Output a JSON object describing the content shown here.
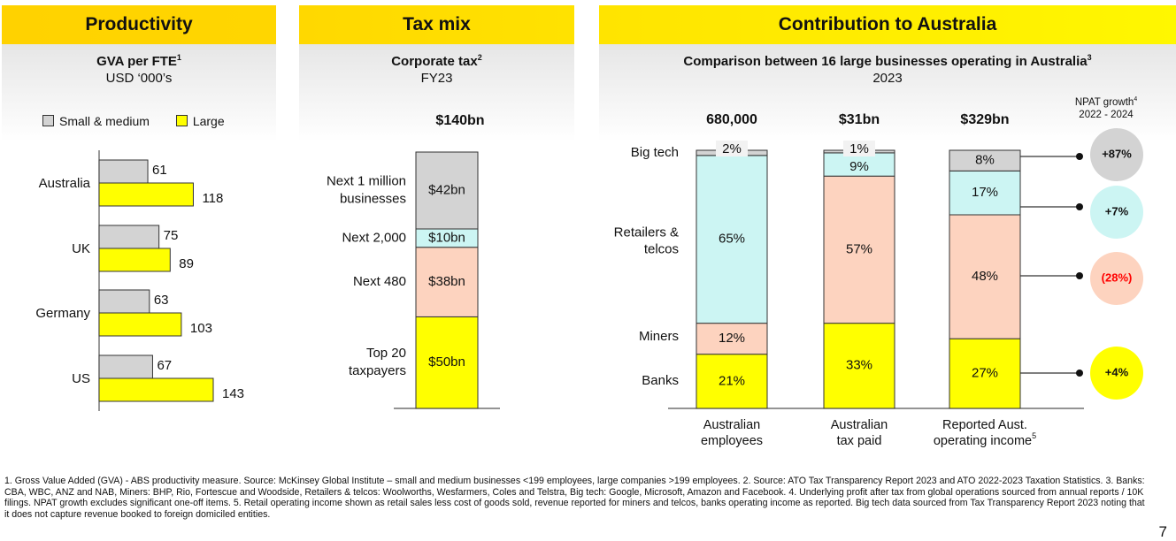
{
  "colors": {
    "small_medium": "#d3d3d3",
    "large": "#ffff00",
    "gray_segment": "#d3d3d3",
    "cyan_segment": "#ccf5f3",
    "peach_segment": "#fdd3bf",
    "yellow_segment": "#ffff00",
    "negative_text": "#ff0000"
  },
  "panels": {
    "productivity": {
      "header": "Productivity",
      "title": "GVA per FTE",
      "title_sup": "1",
      "subtitle": "USD ‘000’s",
      "legend": [
        {
          "label": "Small & medium",
          "color": "#d3d3d3"
        },
        {
          "label": "Large",
          "color": "#ffff00"
        }
      ]
    },
    "tax_mix": {
      "header": "Tax mix",
      "title": "Corporate tax",
      "title_sup": "2",
      "subtitle": "FY23",
      "total": "$140bn"
    },
    "contribution": {
      "header": "Contribution to Australia",
      "title": "Comparison between 16 large businesses operating in Australia",
      "title_sup": "3",
      "subtitle": "2023",
      "npat_header_line1": "NPAT growth",
      "npat_header_sup": "4",
      "npat_header_line2": "2022 - 2024"
    }
  },
  "chart_data": [
    {
      "type": "bar",
      "orientation": "horizontal",
      "title": "GVA per FTE",
      "subtitle": "USD ‘000’s",
      "categories": [
        "Australia",
        "UK",
        "Germany",
        "US"
      ],
      "series": [
        {
          "name": "Small & medium",
          "values": [
            61,
            75,
            63,
            67
          ]
        },
        {
          "name": "Large",
          "values": [
            118,
            89,
            103,
            143
          ]
        }
      ],
      "xlim": [
        0,
        150
      ],
      "legend": "top"
    },
    {
      "type": "bar",
      "stacked": true,
      "title": "Corporate tax FY23",
      "total_label": "$140bn",
      "segments": [
        {
          "name": "Top 20 taxpayers",
          "label_lines": [
            "Top 20",
            "taxpayers"
          ],
          "value": 50,
          "value_label": "$50bn",
          "color": "#ffff00"
        },
        {
          "name": "Next 480",
          "label_lines": [
            "Next 480"
          ],
          "value": 38,
          "value_label": "$38bn",
          "color": "#fdd3bf"
        },
        {
          "name": "Next 2,000",
          "label_lines": [
            "Next 2,000"
          ],
          "value": 10,
          "value_label": "$10bn",
          "color": "#ccf5f3"
        },
        {
          "name": "Next 1 million businesses",
          "label_lines": [
            "Next 1 million",
            "businesses"
          ],
          "value": 42,
          "value_label": "$42bn",
          "color": "#d3d3d3"
        }
      ],
      "unit": "$bn"
    },
    {
      "type": "bar",
      "stacked": true,
      "percent": true,
      "title": "Comparison between 16 large businesses operating in Australia",
      "subtitle": "2023",
      "categories": [
        {
          "label_lines": [
            "Australian",
            "employees"
          ],
          "total": "680,000"
        },
        {
          "label_lines": [
            "Australian",
            "tax paid"
          ],
          "total": "$31bn"
        },
        {
          "label_lines": [
            "Reported Aust.",
            "operating income"
          ],
          "label_sup": "5",
          "total": "$329bn"
        }
      ],
      "series": [
        {
          "name": "Banks",
          "label_lines": [
            "Banks"
          ],
          "color": "#ffff00",
          "values": [
            21,
            33,
            27
          ]
        },
        {
          "name": "Miners",
          "label_lines": [
            "Miners"
          ],
          "color": "#fdd3bf",
          "values": [
            12,
            57,
            48
          ]
        },
        {
          "name": "Retailers & telcos",
          "label_lines": [
            "Retailers &",
            "telcos"
          ],
          "color": "#ccf5f3",
          "values": [
            65,
            9,
            17
          ]
        },
        {
          "name": "Big tech",
          "label_lines": [
            "Big tech"
          ],
          "color": "#d3d3d3",
          "values": [
            2,
            1,
            8
          ]
        }
      ],
      "npat_growth": [
        {
          "segment": "Big tech",
          "value": "+87%",
          "color": "#d3d3d3",
          "negative": false
        },
        {
          "segment": "Retailers & telcos",
          "value": "+7%",
          "color": "#ccf5f3",
          "negative": false
        },
        {
          "segment": "Miners",
          "value": "(28%)",
          "color": "#fdd3bf",
          "negative": true
        },
        {
          "segment": "Banks",
          "value": "+4%",
          "color": "#ffff00",
          "negative": false
        }
      ],
      "ylim": [
        0,
        100
      ]
    }
  ],
  "footnotes": "1. Gross Value Added (GVA) - ABS productivity measure. Source: McKinsey Global Institute – small and medium businesses <199 employees, large companies >199 employees.  2. Source: ATO Tax Transparency Report 2023 and ATO 2022-2023 Taxation Statistics.  3. Banks: CBA, WBC, ANZ and NAB, Miners: BHP, Rio, Fortescue and Woodside, Retailers & telcos: Woolworths, Wesfarmers, Coles and Telstra, Big tech: Google, Microsoft, Amazon and Facebook.  4. Underlying profit after tax from global operations sourced from annual reports / 10K filings. NPAT growth excludes significant one-off items. 5. Retail operating income shown as retail sales less cost of goods sold, revenue reported for miners and telcos, banks operating income as reported. Big tech data sourced from Tax Transparency Report 2023 noting that it does not capture revenue booked to foreign domiciled entities.",
  "page_number": "7"
}
